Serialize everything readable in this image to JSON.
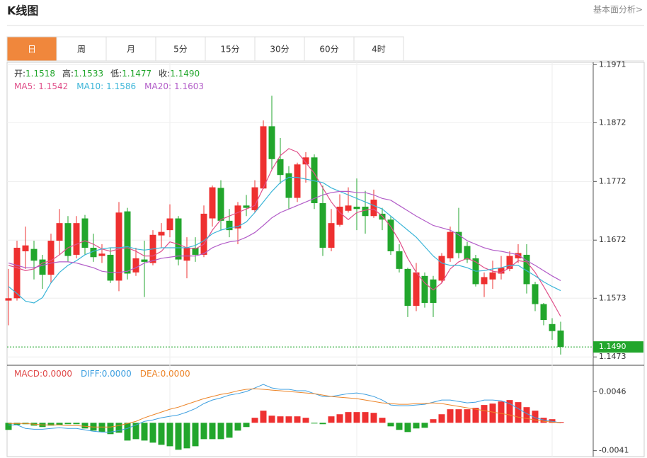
{
  "header": {
    "title": "K线图",
    "link": "基本面分析>"
  },
  "tabs": [
    "日",
    "周",
    "月",
    "5分",
    "15分",
    "30分",
    "60分",
    "4时"
  ],
  "active_tab": 0,
  "chart_data": [
    {
      "type": "candlestick",
      "up_color": "#ee3030",
      "down_color": "#22a62c",
      "ylim": [
        1.146,
        1.1975
      ],
      "yticks": [
        1.1971,
        1.1872,
        1.1772,
        1.1672,
        1.1573,
        1.1473
      ],
      "grid": true,
      "last_price": {
        "value": 1.149,
        "label": "1.1490"
      },
      "ohlc_readout": [
        {
          "label": "开:",
          "value": 1.1518
        },
        {
          "label": "高:",
          "value": 1.1533
        },
        {
          "label": "低:",
          "value": 1.1477
        },
        {
          "label": "收:",
          "value": 1.149,
          "value_label": "1.1490"
        }
      ],
      "open": [
        1.1569,
        1.1573,
        1.1653,
        1.1657,
        1.1639,
        1.1613,
        1.1671,
        1.1701,
        1.1647,
        1.1709,
        1.1659,
        1.1645,
        1.1647,
        1.1603,
        1.1721,
        1.1617,
        1.1639,
        1.1633,
        1.168,
        1.1689,
        1.1709,
        1.1637,
        1.1659,
        1.1647,
        1.1709,
        1.1761,
        1.1705,
        1.1692,
        1.1731,
        1.1723,
        1.176,
        1.1866,
        1.181,
        1.1786,
        1.1744,
        1.1801,
        1.1813,
        1.1735,
        1.1659,
        1.1698,
        1.1722,
        1.1729,
        1.1729,
        1.1713,
        1.1717,
        1.1707,
        1.1653,
        1.1623,
        1.156,
        1.1611,
        1.1605,
        1.1603,
        1.1641,
        1.1686,
        1.1662,
        1.1641,
        1.1597,
        1.1605,
        1.1615,
        1.1623,
        1.1641,
        1.1647,
        1.1597,
        1.1563,
        1.1529,
        1.1518
      ],
      "high": [
        1.1623,
        1.1671,
        1.1695,
        1.1671,
        1.1647,
        1.1683,
        1.1725,
        1.1713,
        1.1713,
        1.1715,
        1.1683,
        1.1665,
        1.1659,
        1.1737,
        1.1727,
        1.1659,
        1.1671,
        1.1689,
        1.1701,
        1.1733,
        1.1713,
        1.1677,
        1.1677,
        1.1731,
        1.1765,
        1.1774,
        1.1725,
        1.1737,
        1.1749,
        1.1774,
        1.1876,
        1.1918,
        1.1846,
        1.1798,
        1.1804,
        1.1822,
        1.1818,
        1.1765,
        1.1725,
        1.175,
        1.1762,
        1.1777,
        1.1756,
        1.1758,
        1.1727,
        1.1713,
        1.1665,
        1.1625,
        1.1633,
        1.1617,
        1.1611,
        1.165,
        1.1695,
        1.1727,
        1.1669,
        1.1647,
        1.1617,
        1.1637,
        1.1645,
        1.1653,
        1.1665,
        1.1665,
        1.1601,
        1.1565,
        1.1539,
        1.1533
      ],
      "low": [
        1.1527,
        1.1569,
        1.1623,
        1.1605,
        1.1589,
        1.1599,
        1.1647,
        1.1635,
        1.1641,
        1.1647,
        1.1635,
        1.1633,
        1.1599,
        1.1585,
        1.1605,
        1.1611,
        1.1575,
        1.1629,
        1.1659,
        1.1677,
        1.1629,
        1.1607,
        1.1635,
        1.1643,
        1.1695,
        1.1689,
        1.1677,
        1.1665,
        1.1713,
        1.1719,
        1.1759,
        1.1792,
        1.1768,
        1.1725,
        1.1737,
        1.177,
        1.1725,
        1.1645,
        1.1653,
        1.1695,
        1.1719,
        1.1689,
        1.1683,
        1.171,
        1.1689,
        1.1647,
        1.1617,
        1.1541,
        1.1551,
        1.1557,
        1.1541,
        1.1599,
        1.1635,
        1.1641,
        1.1633,
        1.1593,
        1.1575,
        1.1589,
        1.1605,
        1.1619,
        1.1633,
        1.1581,
        1.1551,
        1.1527,
        1.1502,
        1.1477
      ],
      "close": [
        1.1573,
        1.1659,
        1.1663,
        1.1637,
        1.1613,
        1.1671,
        1.1701,
        1.1645,
        1.1701,
        1.1659,
        1.1643,
        1.1649,
        1.1603,
        1.1719,
        1.1615,
        1.1641,
        1.1635,
        1.1681,
        1.1686,
        1.1709,
        1.1639,
        1.1659,
        1.1647,
        1.1717,
        1.1762,
        1.1705,
        1.1689,
        1.1731,
        1.1727,
        1.1762,
        1.1866,
        1.181,
        1.1783,
        1.1744,
        1.1801,
        1.1813,
        1.1735,
        1.1659,
        1.1701,
        1.1729,
        1.1731,
        1.1725,
        1.1713,
        1.1741,
        1.1707,
        1.1653,
        1.1623,
        1.156,
        1.1617,
        1.1565,
        1.1565,
        1.1645,
        1.1686,
        1.165,
        1.1639,
        1.1597,
        1.1609,
        1.1617,
        1.1625,
        1.1645,
        1.165,
        1.1597,
        1.1563,
        1.1536,
        1.1517,
        1.149
      ],
      "series": [
        {
          "name": "MA5:",
          "color": "#e0508a",
          "values": [
            1.1629,
            1.1625,
            1.162,
            1.1623,
            1.1633,
            1.1637,
            1.1647,
            1.1659,
            1.1665,
            1.1671,
            1.1665,
            1.1657,
            1.1653,
            1.1657,
            1.1659,
            1.1653,
            1.1645,
            1.1645,
            1.1653,
            1.1669,
            1.1665,
            1.1659,
            1.1657,
            1.1665,
            1.1689,
            1.1707,
            1.1713,
            1.1719,
            1.1725,
            1.1731,
            1.1761,
            1.1792,
            1.1816,
            1.1828,
            1.1822,
            1.1804,
            1.1786,
            1.1761,
            1.1737,
            1.1719,
            1.1707,
            1.1719,
            1.1723,
            1.1725,
            1.1713,
            1.1695,
            1.1671,
            1.1641,
            1.1617,
            1.1599,
            1.1587,
            1.1599,
            1.1623,
            1.1635,
            1.1641,
            1.1635,
            1.1625,
            1.1619,
            1.1617,
            1.1625,
            1.1637,
            1.1635,
            1.1617,
            1.1593,
            1.1568,
            1.1542
          ]
        },
        {
          "name": "MA10:",
          "color": "#3bb5d8",
          "values": [
            1.1593,
            1.1581,
            1.1568,
            1.1565,
            1.1574,
            1.1599,
            1.1617,
            1.1629,
            1.1637,
            1.1647,
            1.1653,
            1.1657,
            1.1659,
            1.1659,
            1.1661,
            1.1657,
            1.1655,
            1.1657,
            1.1659,
            1.1659,
            1.1659,
            1.1659,
            1.1663,
            1.1671,
            1.1683,
            1.1689,
            1.1693,
            1.1695,
            1.1703,
            1.1719,
            1.1737,
            1.1755,
            1.177,
            1.1779,
            1.1779,
            1.1776,
            1.1773,
            1.177,
            1.1761,
            1.1755,
            1.1749,
            1.1743,
            1.1737,
            1.1731,
            1.1725,
            1.1713,
            1.1701,
            1.1689,
            1.1677,
            1.1661,
            1.1645,
            1.1633,
            1.1629,
            1.1629,
            1.1625,
            1.1619,
            1.162,
            1.1623,
            1.1625,
            1.1629,
            1.1629,
            1.162,
            1.1611,
            1.1601,
            1.1593,
            1.1586
          ]
        },
        {
          "name": "MA20:",
          "color": "#b25cc8",
          "values": [
            1.1633,
            1.1629,
            1.1625,
            1.1625,
            1.1629,
            1.1633,
            1.1635,
            1.1635,
            1.1633,
            1.1629,
            1.1625,
            1.1619,
            1.1617,
            1.1617,
            1.1619,
            1.1625,
            1.1633,
            1.1637,
            1.1641,
            1.1643,
            1.1645,
            1.1645,
            1.1645,
            1.1649,
            1.1659,
            1.1665,
            1.1669,
            1.1671,
            1.1677,
            1.1685,
            1.1697,
            1.171,
            1.1719,
            1.1725,
            1.1731,
            1.1737,
            1.1743,
            1.1749,
            1.1753,
            1.1755,
            1.1755,
            1.1753,
            1.1753,
            1.1749,
            1.1743,
            1.174,
            1.1731,
            1.1722,
            1.1713,
            1.1705,
            1.1697,
            1.1693,
            1.1689,
            1.1681,
            1.1671,
            1.1665,
            1.1659,
            1.1655,
            1.1653,
            1.165,
            1.1647,
            1.1637,
            1.1629,
            1.162,
            1.1611,
            1.1603
          ]
        }
      ]
    },
    {
      "type": "macd",
      "up_color": "#ee3030",
      "down_color": "#22a62c",
      "ylim": [
        -0.005,
        0.0084
      ],
      "yticks": [
        0.0046,
        -0.0041
      ],
      "series": [
        {
          "name": "MACD:",
          "color": "#e04848",
          "kind": "bar",
          "readout": {
            "value": 0,
            "label": "0.0000"
          },
          "values": [
            -0.00105,
            -0.00032,
            -0.00021,
            -0.00042,
            -0.00063,
            -0.00042,
            -0.00032,
            -0.00021,
            -0.00021,
            -0.00084,
            -0.00116,
            -0.00137,
            -0.00168,
            -0.00147,
            -0.00263,
            -0.00242,
            -0.00263,
            -0.00294,
            -0.00326,
            -0.00347,
            -0.00399,
            -0.00378,
            -0.00347,
            -0.00242,
            -0.00242,
            -0.00242,
            -0.00221,
            -0.00116,
            -0.00063,
            0.00074,
            0.00179,
            0.00105,
            0.00095,
            0.00095,
            0.00095,
            0.00074,
            -0.00011,
            -0.00021,
            0.00095,
            0.00126,
            0.00158,
            0.00158,
            0.00158,
            0.00147,
            0.00074,
            -0.00053,
            -0.00105,
            -0.00137,
            -0.00084,
            -0.00074,
            0.00053,
            0.00126,
            0.002,
            0.002,
            0.002,
            0.00221,
            0.00263,
            0.00284,
            0.00315,
            0.00336,
            0.00305,
            0.00231,
            0.00179,
            0.00074,
            0.00053,
            0.00011
          ]
        },
        {
          "name": "DIFF:",
          "color": "#3d9fe0",
          "kind": "line",
          "readout": {
            "value": 0,
            "label": "0.0000"
          },
          "values": [
            -0.00032,
            -0.00032,
            -0.00084,
            -0.00095,
            -0.00095,
            -0.00084,
            -0.00074,
            -0.00084,
            -0.00084,
            -0.00105,
            -0.00126,
            -0.00137,
            -0.00137,
            -0.00116,
            -0.00084,
            -0.00032,
            0.00021,
            0.00042,
            0.00074,
            0.00095,
            0.00116,
            0.00158,
            0.0021,
            0.00284,
            0.00336,
            0.00368,
            0.0041,
            0.00431,
            0.00462,
            0.00515,
            0.00567,
            0.00515,
            0.00494,
            0.00494,
            0.00473,
            0.00473,
            0.00431,
            0.00389,
            0.00389,
            0.0041,
            0.00431,
            0.00441,
            0.0042,
            0.00389,
            0.00336,
            0.00263,
            0.00252,
            0.00252,
            0.00263,
            0.00273,
            0.00305,
            0.00336,
            0.00336,
            0.00315,
            0.00294,
            0.00305,
            0.00336,
            0.00336,
            0.00326,
            0.00284,
            0.0021,
            0.00137,
            0.00074,
            0.00042,
            0.00021,
            0
          ]
        },
        {
          "name": "DEA:",
          "color": "#ec8428",
          "kind": "line",
          "readout": {
            "value": 0,
            "label": "0.0000"
          },
          "values": [
            -0.00011,
            -0.00011,
            -0.00011,
            -0.00021,
            -0.00032,
            -0.00032,
            -0.00032,
            -0.00042,
            -0.00042,
            -0.00053,
            -0.00063,
            -0.00063,
            -0.00063,
            -0.00042,
            -0.00011,
            0.00021,
            0.00074,
            0.00116,
            0.00158,
            0.002,
            0.00231,
            0.00273,
            0.00315,
            0.00357,
            0.00389,
            0.0042,
            0.00441,
            0.00473,
            0.00494,
            0.00504,
            0.00494,
            0.00483,
            0.00473,
            0.00462,
            0.00452,
            0.00441,
            0.00431,
            0.0041,
            0.00389,
            0.00378,
            0.00368,
            0.00357,
            0.00336,
            0.00315,
            0.00294,
            0.00284,
            0.00273,
            0.00273,
            0.00284,
            0.00284,
            0.00294,
            0.00284,
            0.00263,
            0.00242,
            0.00221,
            0.002,
            0.00179,
            0.00158,
            0.00137,
            0.00116,
            0.00084,
            0.00063,
            0.00042,
            0.00021,
            0.00011,
            0
          ]
        }
      ]
    }
  ]
}
